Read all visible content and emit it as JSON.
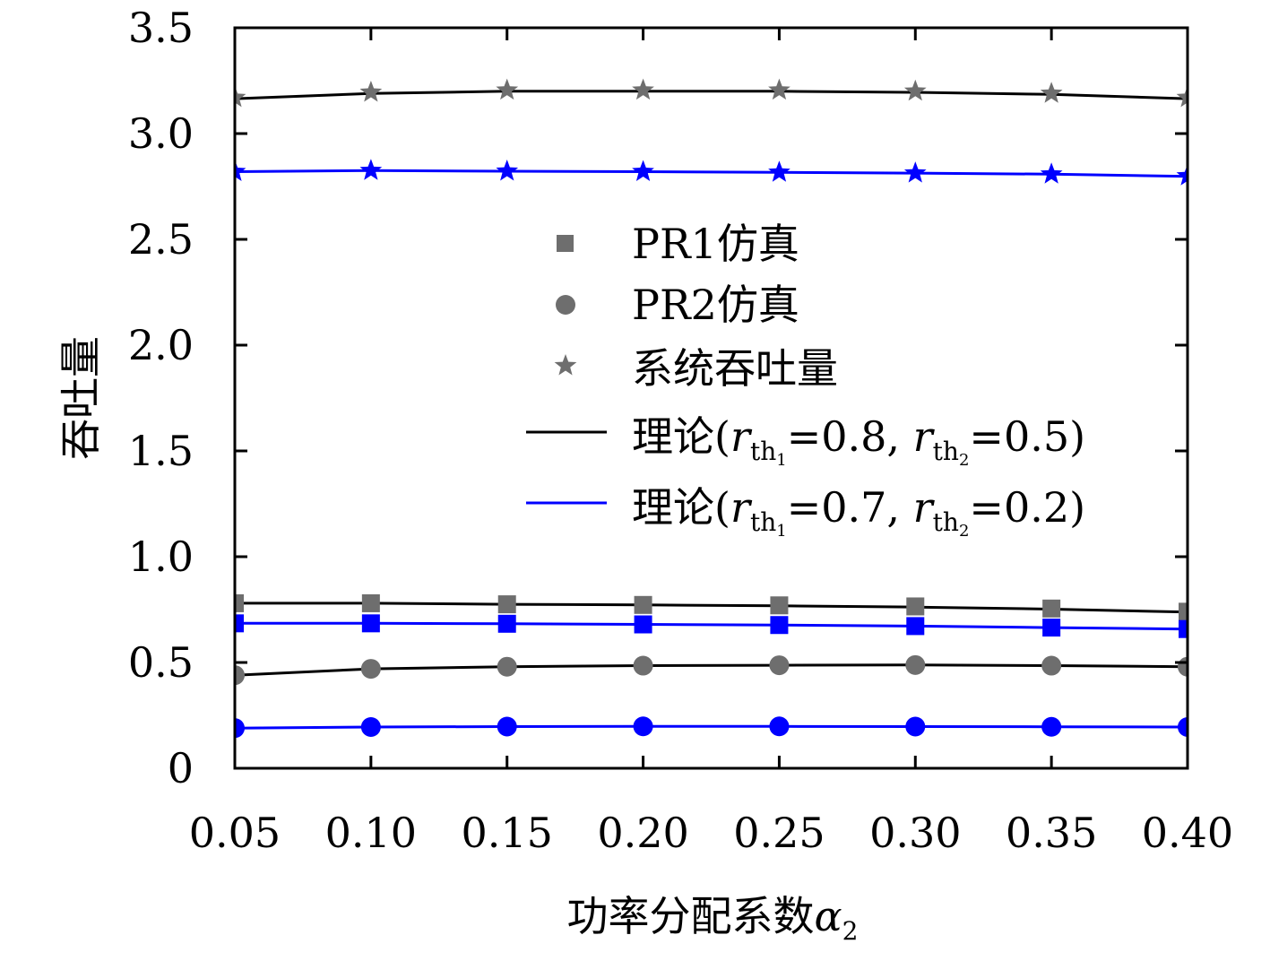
{
  "chart_data": {
    "type": "line",
    "xlabel": "功率分配系数",
    "xlabel_symbol": "α",
    "xlabel_subscript": "2",
    "ylabel": "吞吐量",
    "x": [
      0.05,
      0.1,
      0.15,
      0.2,
      0.25,
      0.3,
      0.35,
      0.4
    ],
    "x_tick_labels": [
      "0.05",
      "0.10",
      "0.15",
      "0.20",
      "0.25",
      "0.30",
      "0.35",
      "0.40"
    ],
    "y_ticks": [
      0,
      0.5,
      1.0,
      1.5,
      2.0,
      2.5,
      3.0,
      3.5
    ],
    "y_tick_labels": [
      "0",
      "0.5",
      "1.0",
      "1.5",
      "2.0",
      "2.5",
      "3.0",
      "3.5"
    ],
    "xlim": [
      0.05,
      0.4
    ],
    "ylim": [
      0,
      3.5
    ],
    "grid": false,
    "legend_position": "center",
    "colors": {
      "black": "#000000",
      "blue": "#0000ff",
      "gray": "#6e6e6e"
    },
    "legend": {
      "pr1_sim": "PR1仿真",
      "pr2_sim": "PR2仿真",
      "sys_sim": "系统吞吐量",
      "theory_prefix": "理论(",
      "theory_sep": ", ",
      "theory_suffix": ")",
      "theory_var": "r",
      "theory_sub": "th",
      "theory_sub1": "1",
      "theory_sub2": "2",
      "theory_a_vals": [
        "=0.8",
        "=0.5"
      ],
      "theory_b_vals": [
        "=0.7",
        "=0.2"
      ]
    },
    "series": [
      {
        "group": "a",
        "kind": "theory",
        "color": "black",
        "values": [
          3.165,
          3.19,
          3.2,
          3.2,
          3.2,
          3.195,
          3.185,
          3.165
        ]
      },
      {
        "group": "a",
        "kind": "theory",
        "color": "black",
        "values": [
          0.78,
          0.78,
          0.775,
          0.772,
          0.768,
          0.762,
          0.752,
          0.738
        ]
      },
      {
        "group": "a",
        "kind": "theory",
        "color": "black",
        "values": [
          0.44,
          0.47,
          0.48,
          0.485,
          0.487,
          0.488,
          0.485,
          0.48
        ]
      },
      {
        "group": "b",
        "kind": "theory",
        "color": "blue",
        "values": [
          2.82,
          2.825,
          2.822,
          2.82,
          2.817,
          2.813,
          2.808,
          2.798
        ]
      },
      {
        "group": "b",
        "kind": "theory",
        "color": "blue",
        "values": [
          0.685,
          0.685,
          0.683,
          0.68,
          0.677,
          0.672,
          0.665,
          0.658
        ]
      },
      {
        "group": "b",
        "kind": "theory",
        "color": "blue",
        "values": [
          0.19,
          0.195,
          0.197,
          0.198,
          0.198,
          0.197,
          0.196,
          0.195
        ]
      },
      {
        "group": "a",
        "kind": "sim",
        "marker": "star",
        "color": "gray",
        "values": [
          3.17,
          3.195,
          3.205,
          3.205,
          3.205,
          3.2,
          3.19,
          3.17
        ]
      },
      {
        "group": "a",
        "kind": "sim",
        "marker": "square",
        "color": "gray",
        "values": [
          0.78,
          0.78,
          0.775,
          0.772,
          0.77,
          0.765,
          0.755,
          0.74
        ]
      },
      {
        "group": "a",
        "kind": "sim",
        "marker": "circle",
        "color": "gray",
        "values": [
          0.44,
          0.47,
          0.48,
          0.485,
          0.487,
          0.488,
          0.485,
          0.48
        ]
      },
      {
        "group": "b",
        "kind": "sim",
        "marker": "star",
        "color": "blue",
        "values": [
          2.82,
          2.825,
          2.822,
          2.82,
          2.817,
          2.813,
          2.808,
          2.8
        ]
      },
      {
        "group": "b",
        "kind": "sim",
        "marker": "square",
        "color": "blue",
        "values": [
          0.685,
          0.685,
          0.683,
          0.68,
          0.677,
          0.672,
          0.665,
          0.658
        ]
      },
      {
        "group": "b",
        "kind": "sim",
        "marker": "circle",
        "color": "blue",
        "values": [
          0.19,
          0.195,
          0.197,
          0.198,
          0.198,
          0.197,
          0.196,
          0.195
        ]
      }
    ]
  }
}
